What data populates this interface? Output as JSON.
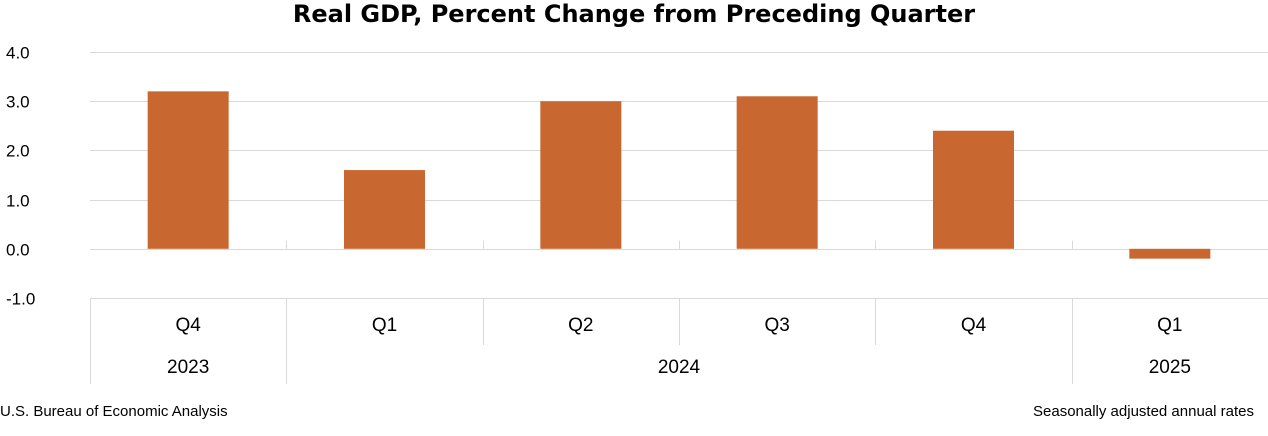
{
  "chart_data": {
    "type": "bar",
    "title": "Real GDP, Percent Change from Preceding Quarter",
    "categories": [
      "Q4",
      "Q1",
      "Q2",
      "Q3",
      "Q4",
      "Q1"
    ],
    "years": [
      {
        "label": "2023",
        "span": 1
      },
      {
        "label": "2024",
        "span": 4
      },
      {
        "label": "2025",
        "span": 1
      }
    ],
    "values": [
      3.2,
      1.6,
      3.0,
      3.1,
      2.4,
      -0.2
    ],
    "ylim": [
      -1.0,
      4.0
    ],
    "yticks": [
      "4.0",
      "3.0",
      "2.0",
      "1.0",
      "0.0",
      "-1.0"
    ],
    "ytick_values": [
      4.0,
      3.0,
      2.0,
      1.0,
      0.0,
      -1.0
    ],
    "grid": true,
    "bar_color": "#C8672F",
    "source": "U.S. Bureau of Economic Analysis",
    "note": "Seasonally adjusted annual rates"
  }
}
